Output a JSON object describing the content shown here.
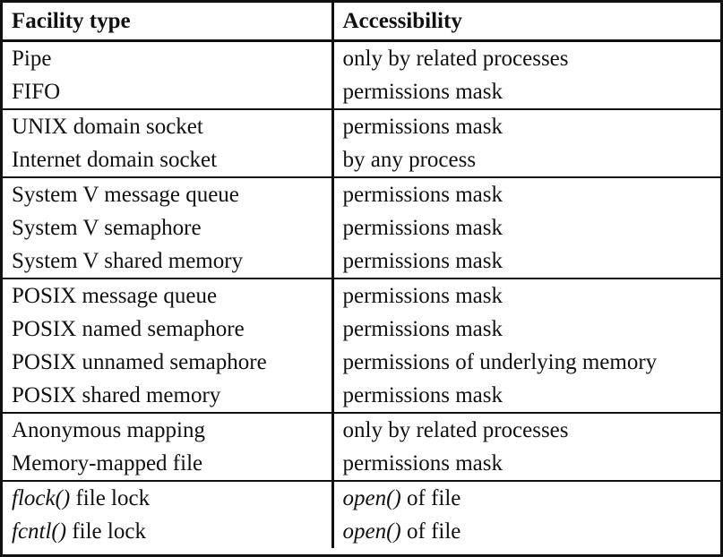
{
  "table": {
    "headers": [
      "Facility type",
      "Accessibility"
    ],
    "groups": [
      [
        {
          "facility": "Pipe",
          "access": "only by related processes"
        },
        {
          "facility": "FIFO",
          "access": "permissions mask"
        }
      ],
      [
        {
          "facility": "UNIX domain socket",
          "access": "permissions mask"
        },
        {
          "facility": "Internet domain socket",
          "access": "by any process"
        }
      ],
      [
        {
          "facility": "System V message queue",
          "access": "permissions mask"
        },
        {
          "facility": "System V semaphore",
          "access": "permissions mask"
        },
        {
          "facility": "System V shared memory",
          "access": "permissions mask"
        }
      ],
      [
        {
          "facility": "POSIX message queue",
          "access": "permissions mask"
        },
        {
          "facility": "POSIX named semaphore",
          "access": "permissions mask"
        },
        {
          "facility": "POSIX unnamed semaphore",
          "access": "permissions of underlying memory"
        },
        {
          "facility": "POSIX shared memory",
          "access": "permissions mask"
        }
      ],
      [
        {
          "facility": "Anonymous mapping",
          "access": "only by related processes"
        },
        {
          "facility": "Memory-mapped file",
          "access": "permissions mask"
        }
      ],
      [
        {
          "facility_fn": "flock()",
          "facility_rest": " file lock",
          "access_fn": "open()",
          "access_rest": " of file"
        },
        {
          "facility_fn": "fcntl()",
          "facility_rest": " file lock",
          "access_fn": "open()",
          "access_rest": " of file"
        }
      ]
    ]
  }
}
